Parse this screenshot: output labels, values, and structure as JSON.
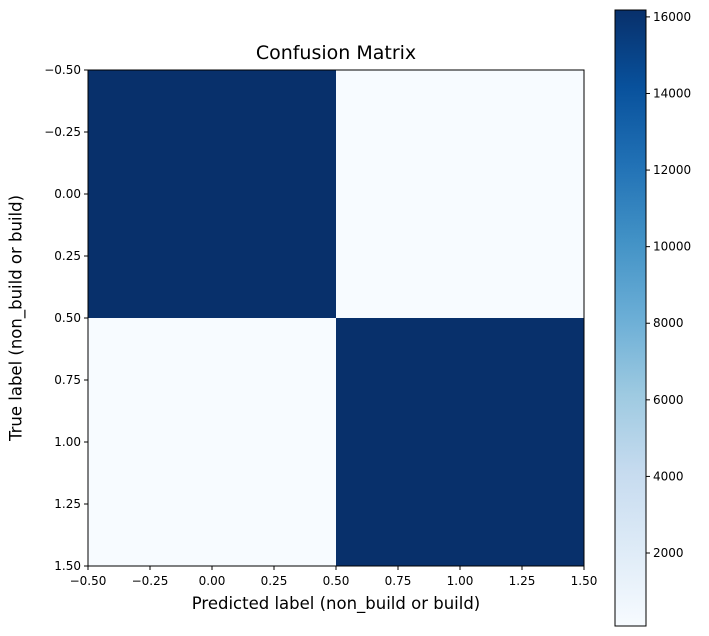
{
  "chart_data": {
    "type": "heatmap",
    "title": "Confusion Matrix",
    "xlabel": "Predicted label (non_build or build)",
    "ylabel": "True label (non_build or build)",
    "x_ticks": [
      "−0.50",
      "−0.25",
      "0.00",
      "0.25",
      "0.50",
      "0.75",
      "1.00",
      "1.25",
      "1.50"
    ],
    "y_ticks": [
      "−0.50",
      "−0.25",
      "0.00",
      "0.25",
      "0.50",
      "0.75",
      "1.00",
      "1.25",
      "1.50"
    ],
    "xlim": [
      -0.5,
      1.5
    ],
    "ylim": [
      1.5,
      -0.5
    ],
    "rows": [
      "non_build",
      "build"
    ],
    "cols": [
      "non_build",
      "build"
    ],
    "matrix": [
      [
        16180,
        94
      ],
      [
        94,
        16180
      ]
    ],
    "colormap": "Blues",
    "colorbar": {
      "min": 94,
      "max": 16180,
      "ticks": [
        "2000",
        "4000",
        "6000",
        "8000",
        "10000",
        "12000",
        "14000",
        "16000"
      ],
      "tick_values": [
        2000,
        4000,
        6000,
        8000,
        10000,
        12000,
        14000,
        16000
      ]
    },
    "cell_colors": [
      [
        "#08306b",
        "#f7fbff"
      ],
      [
        "#f7fbff",
        "#08306b"
      ]
    ],
    "grid": false
  }
}
